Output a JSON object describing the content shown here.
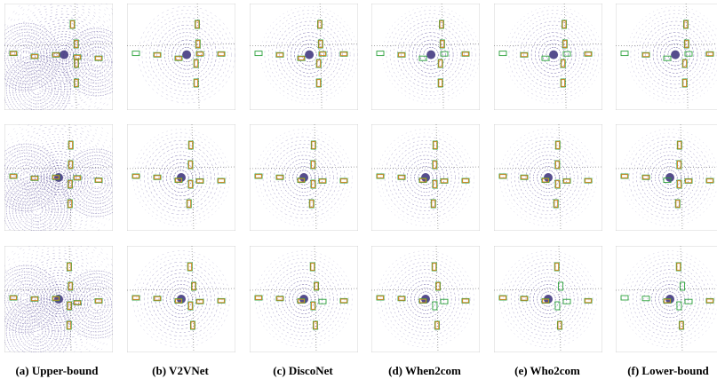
{
  "captions": [
    "(a) Upper-bound",
    "(b) V2VNet",
    "(c) DiscoNet",
    "(d) When2com",
    "(e) Who2com",
    "(f) Lower-bound"
  ]
}
